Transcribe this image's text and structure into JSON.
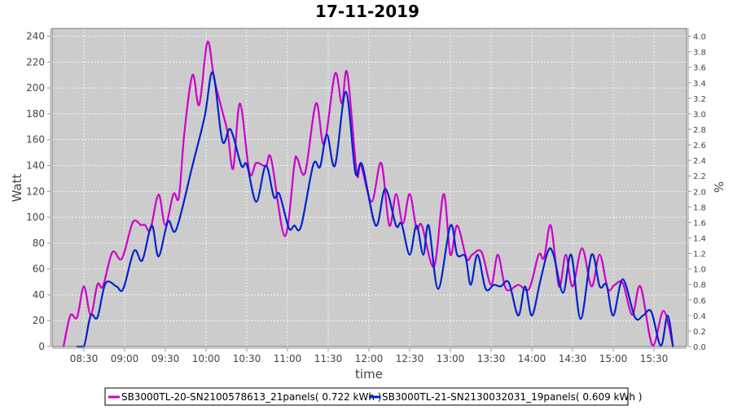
{
  "chart_data": {
    "type": "line",
    "title": "17-11-2019",
    "xlabel": "time",
    "ylabel": "Watt",
    "y2label": "%",
    "xlim": [
      "08:06",
      "15:54"
    ],
    "ylim": [
      0,
      246
    ],
    "y2lim": [
      0,
      4.1
    ],
    "yticks": [
      0,
      20,
      40,
      60,
      80,
      100,
      120,
      140,
      160,
      180,
      200,
      220,
      240
    ],
    "y2ticks": [
      "0.0",
      "0.2",
      "0.4",
      "0.6",
      "0.8",
      "1.0",
      "1.2",
      "1.4",
      "1.6",
      "1.8",
      "2.0",
      "2.2",
      "2.4",
      "2.6",
      "2.8",
      "3.0",
      "3.2",
      "3.4",
      "3.6",
      "3.8",
      "4.0"
    ],
    "xticks": [
      "08:30",
      "09:00",
      "09:30",
      "10:00",
      "10:30",
      "11:00",
      "11:30",
      "12:00",
      "12:30",
      "13:00",
      "13:30",
      "14:00",
      "14:30",
      "15:00",
      "15:30"
    ],
    "grid": true,
    "legend_position": "bottom",
    "series": [
      {
        "name": "SB3000TL-20-SN2100578613_21panels( 0.722 kWh )",
        "color": "#cc00cc",
        "x": [
          "08:15",
          "08:20",
          "08:25",
          "08:30",
          "08:35",
          "08:40",
          "08:44",
          "08:51",
          "08:58",
          "09:06",
          "09:12",
          "09:15",
          "09:19",
          "09:25",
          "09:30",
          "09:36",
          "09:40",
          "09:44",
          "09:50",
          "09:55",
          "10:01",
          "10:06",
          "10:12",
          "10:16",
          "10:20",
          "10:25",
          "10:32",
          "10:37",
          "10:44",
          "10:48",
          "10:58",
          "11:05",
          "11:07",
          "11:13",
          "11:21",
          "11:27",
          "11:35",
          "11:40",
          "11:44",
          "11:51",
          "11:54",
          "12:02",
          "12:09",
          "12:15",
          "12:20",
          "12:25",
          "12:30",
          "12:35",
          "12:39",
          "12:48",
          "12:55",
          "13:00",
          "13:05",
          "13:12",
          "13:16",
          "13:23",
          "13:30",
          "13:35",
          "13:41",
          "13:50",
          "13:58",
          "14:05",
          "14:09",
          "14:14",
          "14:20",
          "14:25",
          "14:30",
          "14:37",
          "14:44",
          "14:50",
          "14:56",
          "15:01",
          "15:07",
          "15:14",
          "15:20",
          "15:29",
          "15:37",
          "15:44"
        ],
        "y": [
          0,
          24,
          22.6,
          46.5,
          24.5,
          48,
          46.5,
          73,
          68,
          96,
          94,
          94,
          90.5,
          117.5,
          94,
          118,
          115.6,
          165,
          210,
          187,
          235.6,
          207,
          182,
          165,
          137.6,
          188,
          134.5,
          142,
          139.5,
          145,
          85.4,
          140,
          146,
          134.5,
          188,
          156.5,
          211,
          188,
          211.7,
          134.5,
          140.7,
          112,
          142,
          93.6,
          118,
          95,
          118,
          91.7,
          93.6,
          62,
          118,
          71,
          93.6,
          68,
          71,
          73,
          47.7,
          71,
          44.6,
          47.7,
          44.6,
          71,
          68.5,
          93.6,
          46.5,
          71,
          46.5,
          76,
          46.5,
          71,
          44.6,
          47.7,
          49,
          24.5,
          46.5,
          0.5,
          27.6,
          0
        ]
      },
      {
        "name": "SB3000TL-21-SN2130032031_19panels( 0.609 kWh )",
        "color": "#0022cc",
        "x": [
          "08:25",
          "08:30",
          "08:35",
          "08:40",
          "08:46",
          "08:54",
          "08:59",
          "09:07",
          "09:13",
          "09:20",
          "09:25",
          "09:32",
          "09:38",
          "09:50",
          "09:59",
          "10:05",
          "10:12",
          "10:18",
          "10:26",
          "10:30",
          "10:37",
          "10:44",
          "10:50",
          "10:54",
          "11:01",
          "11:05",
          "11:10",
          "11:19",
          "11:24",
          "11:29",
          "11:35",
          "11:43",
          "11:50",
          "11:55",
          "12:05",
          "12:12",
          "12:20",
          "12:24",
          "12:30",
          "12:35",
          "12:40",
          "12:44",
          "12:51",
          "13:00",
          "13:05",
          "13:11",
          "13:15",
          "13:20",
          "13:26",
          "13:32",
          "13:37",
          "13:43",
          "13:50",
          "13:55",
          "14:00",
          "14:06",
          "14:12",
          "14:16",
          "14:23",
          "14:29",
          "14:36",
          "14:44",
          "14:50",
          "14:55",
          "15:00",
          "15:07",
          "15:16",
          "15:22",
          "15:28",
          "15:35",
          "15:40",
          "15:44"
        ],
        "y": [
          0,
          0,
          24,
          22.6,
          49,
          46.5,
          44.6,
          74,
          66.6,
          93.6,
          69.7,
          96.7,
          90.5,
          140,
          178,
          212,
          159,
          168,
          140,
          140.7,
          112,
          140,
          115.6,
          118,
          91.7,
          93.6,
          93,
          140.7,
          139,
          164,
          140,
          197,
          134.5,
          140.7,
          93.6,
          122,
          93.6,
          95,
          71,
          93.6,
          71,
          93.6,
          44.6,
          93.6,
          71,
          69.7,
          47.7,
          71,
          44.6,
          47.7,
          46.5,
          49.6,
          24,
          46.5,
          24,
          49.6,
          74,
          71,
          41.5,
          71,
          21.4,
          71,
          46.5,
          47.7,
          24,
          52,
          22.6,
          24,
          27,
          0.5,
          24,
          0
        ]
      }
    ]
  }
}
